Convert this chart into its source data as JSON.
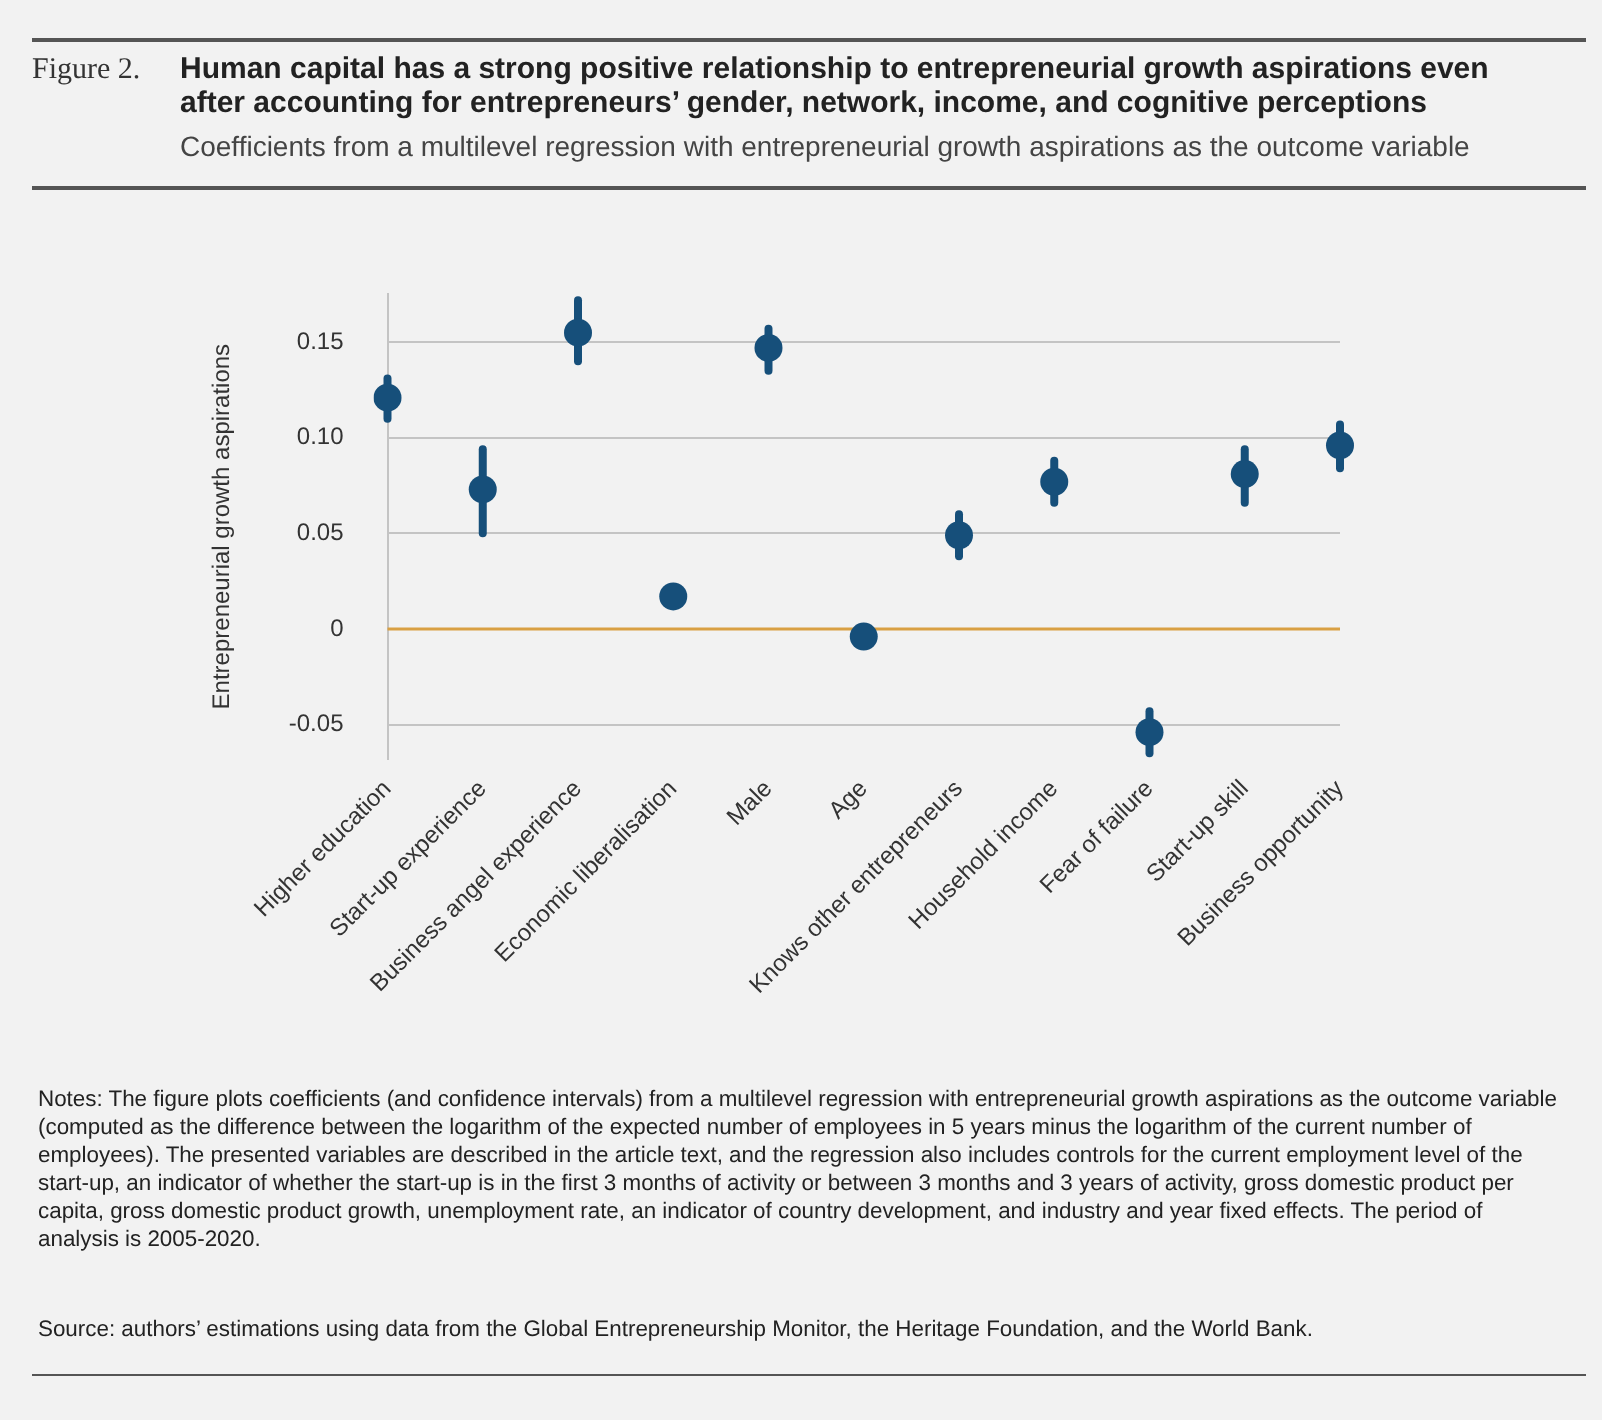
{
  "chart_data": {
    "type": "scatter",
    "title": "Human capital has a strong positive relationship to entrepreneurial growth aspirations even after accounting for entrepreneurs’ gender, network, income, and cognitive perceptions",
    "subtitle": "Coefficients from a multilevel regression with entrepreneurial growth aspirations as the outcome variable",
    "ylabel": "Entrepreneurial growth aspirations",
    "categories": [
      "Higher education",
      "Start-up experience",
      "Business angel experience",
      "Economic liberalisation",
      "Male",
      "Age",
      "Knows other entrepreneurs",
      "Household income",
      "Fear of failure",
      "Start-up skill",
      "Business opportunity"
    ],
    "values": [
      0.121,
      0.073,
      0.155,
      0.017,
      0.147,
      -0.004,
      0.049,
      0.077,
      -0.054,
      0.081,
      0.096
    ],
    "errors": [
      [
        0.11,
        0.131
      ],
      [
        0.05,
        0.094
      ],
      [
        0.14,
        0.172
      ],
      null,
      [
        0.135,
        0.157
      ],
      null,
      [
        0.038,
        0.06
      ],
      [
        0.066,
        0.088
      ],
      [
        -0.065,
        -0.043
      ],
      [
        0.066,
        0.094
      ],
      [
        0.084,
        0.107
      ]
    ],
    "color": "#164f7a",
    "marker": "circle",
    "grid": "y",
    "yticks": [
      {
        "value": -0.05,
        "label": "-0.05"
      },
      {
        "value": 0,
        "label": "0"
      },
      {
        "value": 0.05,
        "label": "0.05"
      },
      {
        "value": 0.1,
        "label": "0.10"
      },
      {
        "value": 0.15,
        "label": "0.15"
      }
    ],
    "ylim": [
      -0.068,
      0.175
    ],
    "ref_lines": [
      {
        "axis": "y",
        "value": 0,
        "color": "#d9a043"
      }
    ],
    "annotations": [
      "Figure 2.",
      "Notes: The figure plots coefficients (and confidence intervals) from a multilevel regression with entrepreneurial growth aspirations as the outcome variable (computed as the difference between the logarithm of the expected number of employees in 5 years minus the logarithm of the current number of employees). The presented variables are described in the article text, and the regression also includes controls for the current employment level of the start-up, an indicator of whether the start-up is in the first 3 months of activity or between 3 months and 3 years of activity, gross domestic product per capita, gross domestic product growth, unemployment rate, an indicator of country development, and industry and year fixed effects. The period of analysis is 2005-2020.",
      "Source: authors’ estimations using data from the Global Entrepreneurship Monitor, the Heritage Foundation, and the World Bank."
    ]
  }
}
